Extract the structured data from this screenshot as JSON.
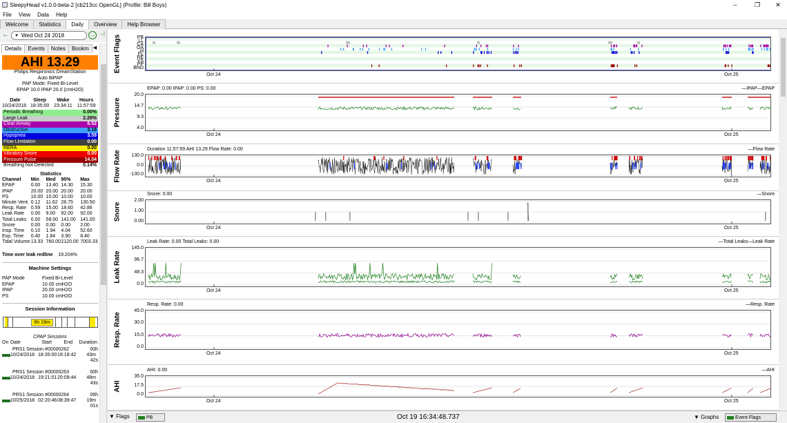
{
  "window": {
    "title": "SleepyHead v1.0.0-beta-2 [cb213cc OpenGL] (Profile: Bill Boys)",
    "min": "–",
    "max": "❐",
    "close": "✕"
  },
  "menu": [
    "File",
    "View",
    "Data",
    "Help"
  ],
  "tabs": [
    "Welcome",
    "Statistics",
    "Daily",
    "Overview",
    "Help Browser"
  ],
  "nav": {
    "date": "Wed Oct 24 2018",
    "prev": "←",
    "next": "→",
    "go": "→|",
    "cal": "▼"
  },
  "left_tabs": [
    "Details",
    "Events",
    "Notes",
    "Bookm"
  ],
  "ahi": "AHI 13.29",
  "machine": [
    "Philips Respironics DreamStation",
    "Auto BiPAP",
    "PAP Mode: Fixed Bi-Level",
    "EPAP 10.0 IPAP 20.0 (cmH2O)"
  ],
  "summary": {
    "headers": [
      "Date",
      "Sleep",
      "Wake",
      "Hours"
    ],
    "values": [
      "10/24/2018",
      "18:35:00",
      "23:34:11",
      "11:57:59"
    ]
  },
  "events": [
    {
      "name": "Periodic Breathing",
      "value": "0.00%",
      "bg": "#90ee90",
      "fg": "#000"
    },
    {
      "name": "Large Leak",
      "value": "2.26%",
      "bg": "#cccccc",
      "fg": "#000"
    },
    {
      "name": "Clear Airway",
      "value": "6.52",
      "bg": "#aa00aa",
      "fg": "#fff"
    },
    {
      "name": "Obstructive",
      "value": "3.18",
      "bg": "#40a0ff",
      "fg": "#000"
    },
    {
      "name": "Hypopnea",
      "value": "3.59",
      "bg": "#0000dd",
      "fg": "#fff"
    },
    {
      "name": "Flow Limitation",
      "value": "0.00",
      "bg": "#404040",
      "fg": "#fff"
    },
    {
      "name": "RERA",
      "value": "0.00",
      "bg": "#ffee00",
      "fg": "#000"
    },
    {
      "name": "Vibratory Snore",
      "value": "0.00",
      "bg": "#ee0000",
      "fg": "#fff"
    },
    {
      "name": "Pressure Pulse",
      "value": "14.04",
      "bg": "#990000",
      "fg": "#fff"
    },
    {
      "name": "Breathing Not Detected",
      "value": "0.14%",
      "bg": "#ffffff",
      "fg": "#000"
    }
  ],
  "statistics": {
    "title": "Statistics",
    "headers": [
      "Channel",
      "Min",
      "Med",
      "95%",
      "Max"
    ],
    "rows": [
      [
        "EPAP",
        "0.00",
        "13.40",
        "14.30",
        "15.30"
      ],
      [
        "IPAP",
        "20.00",
        "20.00",
        "20.00",
        "20.00"
      ],
      [
        "PS",
        "10.00",
        "10.00",
        "10.00",
        "10.00"
      ],
      [
        "Minute Vent.",
        "0.12",
        "11.62",
        "28.75",
        "130.50"
      ],
      [
        "Resp. Rate",
        "0.59",
        "15.00",
        "18.60",
        "42.86"
      ],
      [
        "Leak Rate",
        "0.00",
        "9.00",
        "92.00",
        "92.00"
      ],
      [
        "Total Leaks",
        "0.00",
        "58.00",
        "141.00",
        "141.00"
      ],
      [
        "Snore",
        "0.00",
        "0.00",
        "0.00",
        "2.00"
      ],
      [
        "Insp. Time",
        "0.10",
        "1.94",
        "4.04",
        "52.60"
      ],
      [
        "Exp. Time",
        "0.40",
        "1.84",
        "3.90",
        "8.40"
      ],
      [
        "Tidal Volume",
        "13.33",
        "760.00",
        "2120.00",
        "7003.33"
      ]
    ]
  },
  "redline": {
    "label": "Time over leak redline",
    "value": "19.204%"
  },
  "settings": {
    "title": "Machine Settings",
    "rows": [
      [
        "PAP Mode",
        "Fixed Bi-Level"
      ],
      [
        "EPAP",
        "10.00 cmH2O"
      ],
      [
        "IPAP",
        "20.00 cmH2O"
      ],
      [
        "PS",
        "10.00 cmH2O"
      ]
    ]
  },
  "session_info": {
    "title": "Session Information",
    "bar_label": "6h 19m",
    "cpap": "CPAP Sessions",
    "cols": [
      "On",
      "Date",
      "Start",
      "End",
      "Duration"
    ],
    "sessions": [
      {
        "name": "PRS1 Session #00000262",
        "dur1": "00h",
        "date": "10/24/2018",
        "start": "18:35:00",
        "end": "19:18:42",
        "dur2": "43m",
        "dur3": "42s"
      },
      {
        "name": "PRS1 Session #00000263",
        "dur1": "00h",
        "date": "10/24/2018",
        "start": "19:21:01",
        "end": "20:09:44",
        "dur2": "48m",
        "dur3": "43s"
      },
      {
        "name": "PRS1 Session #00000264",
        "dur1": "06h",
        "date": "10/25/2018",
        "start": "02:20:46",
        "end": "08:39:47",
        "dur2": "19m",
        "dur3": "01s"
      }
    ]
  },
  "xticks": [
    "Oct 24",
    "Oct 25"
  ],
  "panels": {
    "flags": {
      "title": "Event Flags",
      "labels": [
        "PB",
        "LL",
        "CA",
        "OA",
        "H",
        "FL",
        "RE",
        "VS",
        "PP",
        "BND"
      ]
    },
    "pressure": {
      "title": "Pressure",
      "info": "EPAP: 0.00 IPAP: 0.00 PS: 0.00",
      "legend": "—IPAP—EPAP",
      "yticks": [
        "20.0",
        "14.7",
        "9.3",
        "4.0"
      ]
    },
    "flow": {
      "title": "Flow Rate",
      "info": "Duration 11:57:59 AHI 13.29 Flow Rate: 0.00",
      "legend": "—Flow Rate",
      "yticks": [
        "130.0",
        "0.0",
        "-130.0"
      ]
    },
    "snore": {
      "title": "Snore",
      "info": "Snore: 0.00",
      "legend": "—Snore",
      "yticks": [
        "2.00",
        "1.00",
        "0.00"
      ]
    },
    "leak": {
      "title": "Leak Rate",
      "info": "Leak Rate: 0.00 Total Leaks: 0.00",
      "legend": "—Total Leaks—Leak Rate",
      "yticks": [
        "145.0",
        "96.7",
        "48.3",
        "0.0"
      ]
    },
    "resp": {
      "title": "Resp. Rate",
      "info": "Resp. Rate: 0.00",
      "legend": "—Resp. Rate",
      "yticks": [
        "45.0",
        "30.0",
        "15.0",
        "0.0"
      ]
    },
    "ahi": {
      "title": "AHI",
      "info": "AHI: 0.00",
      "legend": "—AHI",
      "yticks": [
        "35.0",
        "17.5",
        "0.0"
      ]
    }
  },
  "bottom": {
    "flags": "Flags",
    "pb": "PB",
    "clock": "Oct 19 16:34:48.737",
    "graphs": "Graphs",
    "event_flags": "Event Flags"
  },
  "colors": {
    "pressure": "#208020",
    "leak": "#208020",
    "resp": "#900090",
    "ahi": "#a02020",
    "flow": "#000000",
    "ipap": "#cc2020"
  }
}
